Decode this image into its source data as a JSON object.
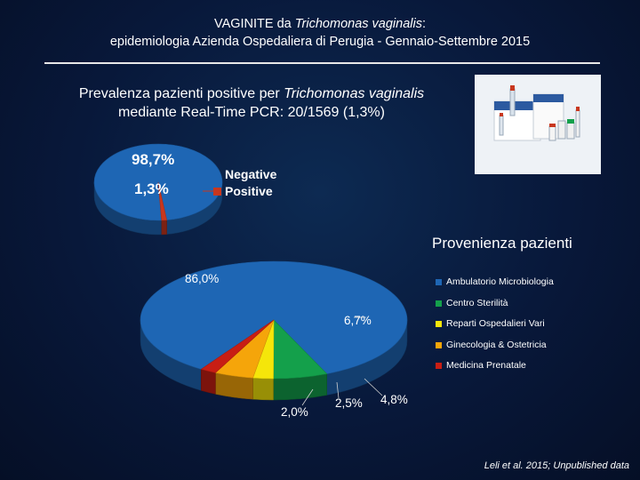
{
  "header": {
    "title_prefix": "VAGINITE da ",
    "title_italic": "Trichomonas vaginalis",
    "title_suffix": ":",
    "subtitle_line": "epidemiologia Azienda Ospedaliera di Perugia - Gennaio-Settembre 2015"
  },
  "prevalence": {
    "line1_prefix": "Prevalenza pazienti positive per ",
    "line1_italic": "Trichomonas vaginalis",
    "line2": "mediante Real-Time PCR: 20/1569 (1,3%)"
  },
  "product_image": {
    "description_icon": "pcr-kit-image"
  },
  "colors": {
    "background": "#08183a",
    "negative": "#1e66b4",
    "positive": "#c8371e",
    "ambulatorio": "#1e66b4",
    "centro": "#14a04b",
    "reparti": "#f5e60a",
    "ginecologia": "#f5a50a",
    "prenatale": "#c81e14"
  },
  "chart_data": [
    {
      "type": "pie",
      "labels": [
        "Negative",
        "Positive"
      ],
      "values": [
        98.7,
        1.3
      ],
      "data_labels": [
        "98,7%",
        "1,3%"
      ],
      "legend": [
        "Negative",
        "Positive"
      ],
      "legend_placement": "right",
      "colors": [
        "#1e66b4",
        "#c8371e"
      ]
    },
    {
      "type": "pie",
      "title": "Provenienza pazienti",
      "labels": [
        "Ambulatorio Microbiologia",
        "Centro Sterilità",
        "Reparti Ospedalieri Vari",
        "Ginecologia & Ostetricia",
        "Medicina Prenatale"
      ],
      "values": [
        86.0,
        6.7,
        2.5,
        4.8,
        2.0
      ],
      "data_labels": [
        "86,0%",
        "6,7%",
        "2,5%",
        "4,8%",
        "2,0%"
      ],
      "legend": [
        "Ambulatorio Microbiologia",
        "Centro Sterilità",
        "Reparti Ospedalieri Vari",
        "Ginecologia & Ostetricia",
        "Medicina Prenatale"
      ],
      "legend_placement": "right",
      "colors": [
        "#1e66b4",
        "#14a04b",
        "#f5e60a",
        "#f5a50a",
        "#c81e14"
      ]
    }
  ],
  "footnote": "Leli et al. 2015; Unpublished data"
}
